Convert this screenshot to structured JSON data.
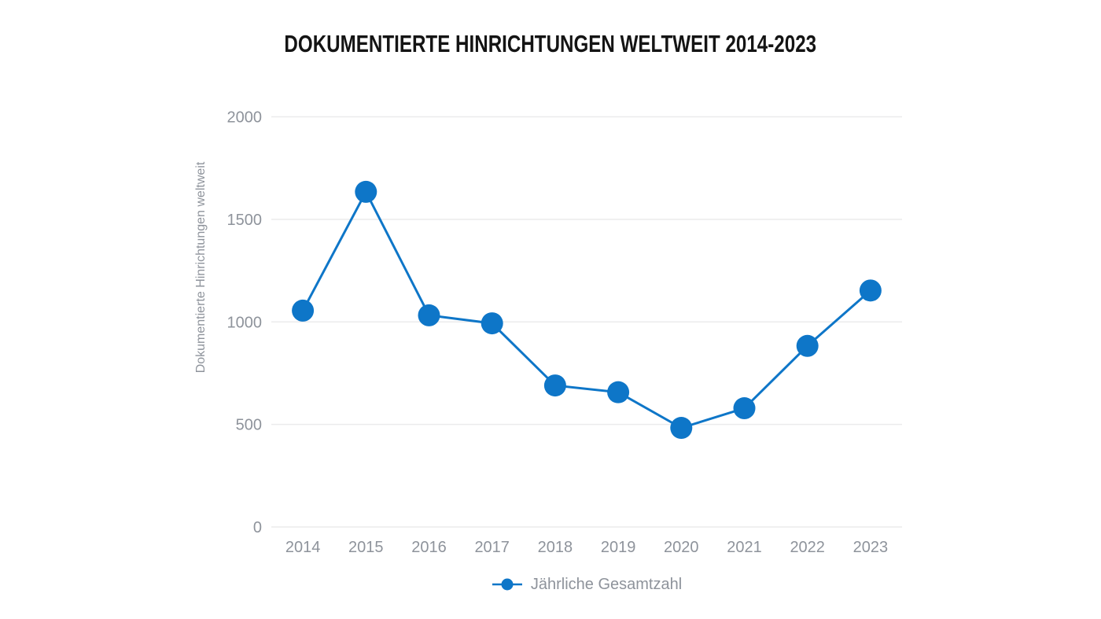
{
  "title": {
    "text": "DOKUMENTIERTE HINRICHTUNGEN WELTWEIT 2014-2023"
  },
  "chart_data": {
    "type": "line",
    "title": "DOKUMENTIERTE HINRICHTUNGEN WELTWEIT 2014-2023",
    "categories": [
      "2014",
      "2015",
      "2016",
      "2017",
      "2018",
      "2019",
      "2020",
      "2021",
      "2022",
      "2023"
    ],
    "series": [
      {
        "name": "Jährliche Gesamtzahl",
        "values": [
          1055,
          1634,
          1032,
          993,
          690,
          657,
          483,
          579,
          883,
          1153
        ],
        "color": "#0e76c8",
        "marker": "circle"
      }
    ],
    "xlabel": "",
    "ylabel": "Dokumentierte Hinrichtungen weltweit",
    "ylim": [
      0,
      2000
    ],
    "yticks": [
      0,
      500,
      1000,
      1500,
      2000
    ],
    "grid": "horizontal",
    "legend_position": "bottom",
    "colors": {
      "accent": "#0e76c8",
      "axis_text": "#8e939b",
      "gridline": "#ebebec",
      "title_text": "#141414",
      "background": "#ffffff"
    }
  }
}
